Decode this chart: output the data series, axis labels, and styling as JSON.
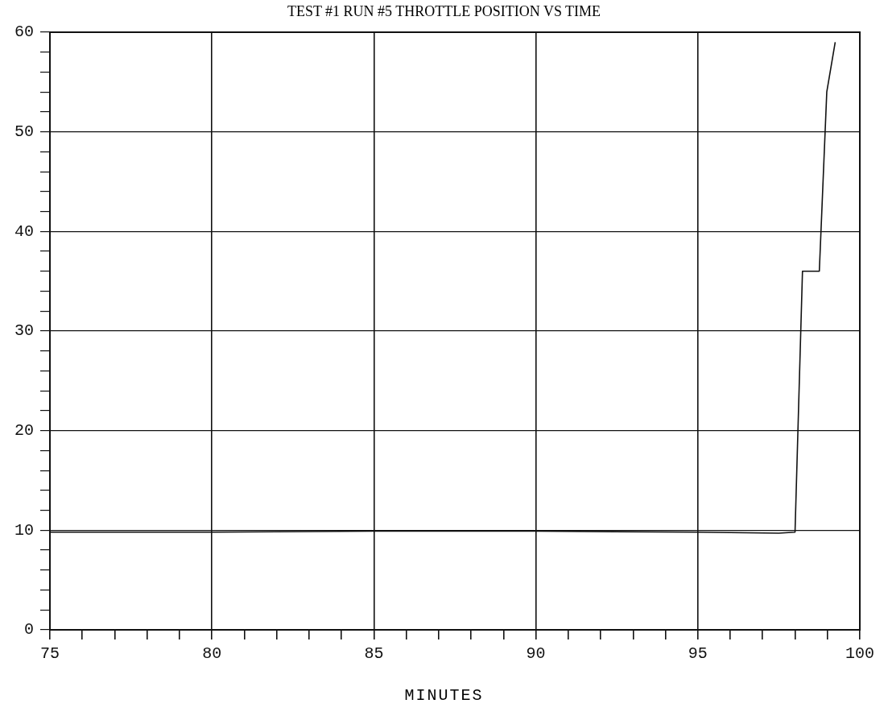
{
  "chart_data": {
    "type": "line",
    "title": "TEST #1 RUN #5 THROTTLE POSITION VS TIME",
    "xlabel": "MINUTES",
    "series": [
      {
        "color": "#111111",
        "x": [
          75,
          80,
          85,
          90,
          95,
          97.5,
          98.0,
          98.23,
          98.75,
          98.98,
          99.24
        ],
        "values": [
          9.8,
          9.8,
          9.9,
          9.9,
          9.8,
          9.7,
          9.8,
          36,
          36,
          54,
          59
        ]
      }
    ],
    "xlim": [
      75,
      100
    ],
    "ylim": [
      0,
      60
    ],
    "xticks": [
      75,
      {
        "value": 76,
        "label": null
      },
      {
        "value": 77,
        "label": null
      },
      {
        "value": 78,
        "label": null
      },
      {
        "value": 79,
        "label": null
      },
      80,
      {
        "value": 81,
        "label": null
      },
      {
        "value": 82,
        "label": null
      },
      {
        "value": 83,
        "label": null
      },
      {
        "value": 84,
        "label": null
      },
      85,
      {
        "value": 86,
        "label": null
      },
      {
        "value": 87,
        "label": null
      },
      {
        "value": 88,
        "label": null
      },
      {
        "value": 89,
        "label": null
      },
      90,
      {
        "value": 91,
        "label": null
      },
      {
        "value": 92,
        "label": null
      },
      {
        "value": 93,
        "label": null
      },
      {
        "value": 94,
        "label": null
      },
      95,
      {
        "value": 96,
        "label": null
      },
      {
        "value": 97,
        "label": null
      },
      {
        "value": 98,
        "label": null
      },
      {
        "value": 99,
        "label": null
      },
      100
    ],
    "yticks": [
      0,
      {
        "value": 2,
        "label": null
      },
      {
        "value": 4,
        "label": null
      },
      {
        "value": 6,
        "label": null
      },
      {
        "value": 8,
        "label": null
      },
      10,
      {
        "value": 12,
        "label": null
      },
      {
        "value": 14,
        "label": null
      },
      {
        "value": 16,
        "label": null
      },
      {
        "value": 18,
        "label": null
      },
      20,
      {
        "value": 22,
        "label": null
      },
      {
        "value": 24,
        "label": null
      },
      {
        "value": 26,
        "label": null
      },
      {
        "value": 28,
        "label": null
      },
      30,
      {
        "value": 32,
        "label": null
      },
      {
        "value": 34,
        "label": null
      },
      {
        "value": 36,
        "label": null
      },
      {
        "value": 38,
        "label": null
      },
      40,
      {
        "value": 42,
        "label": null
      },
      {
        "value": 44,
        "label": null
      },
      {
        "value": 46,
        "label": null
      },
      {
        "value": 48,
        "label": null
      },
      50,
      {
        "value": 52,
        "label": null
      },
      {
        "value": 54,
        "label": null
      },
      {
        "value": 56,
        "label": null
      },
      {
        "value": 58,
        "label": null
      },
      60
    ],
    "grid": true,
    "marker": "none",
    "line_style": "solid"
  }
}
